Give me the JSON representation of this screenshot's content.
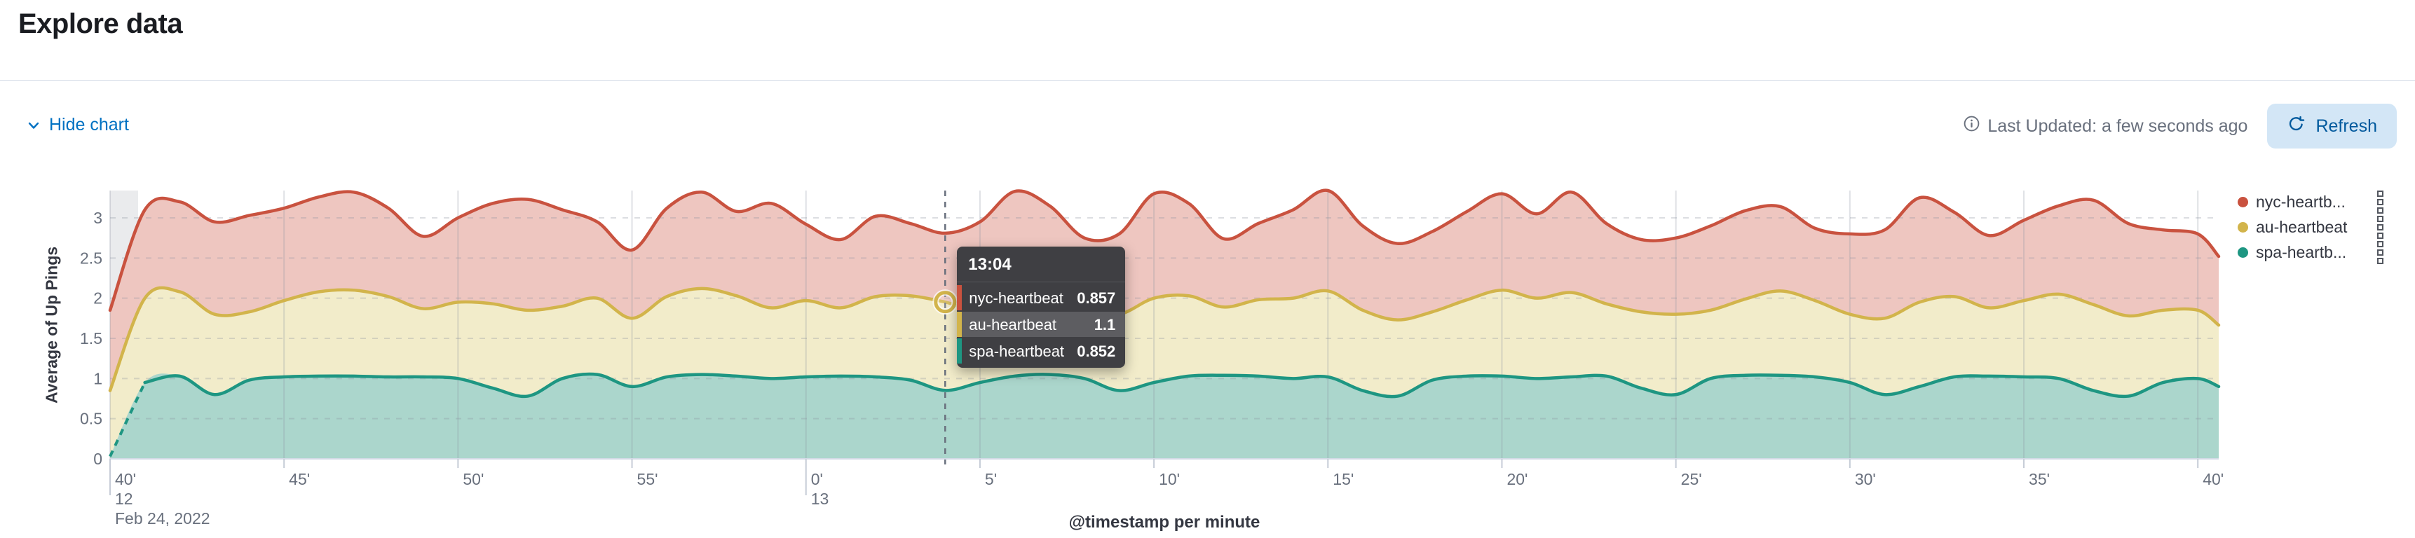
{
  "page": {
    "title": "Explore data"
  },
  "toolbar": {
    "hide_chart_label": "Hide chart",
    "refresh_label": "Refresh"
  },
  "status": {
    "last_updated": "Last Updated: a few seconds ago"
  },
  "chart_data": {
    "type": "area",
    "stacked": true,
    "title": "",
    "xlabel": "@timestamp per minute",
    "ylabel": "Average of Up Pings",
    "start_time": "12:40",
    "interval_minutes": 1,
    "grid": {
      "horizontal": "dashed",
      "vertical": "solid"
    },
    "legend_position": "right",
    "y_axis": {
      "ticks": [
        0,
        0.5,
        1,
        1.5,
        2,
        2.5,
        3
      ],
      "max": 3.34
    },
    "x_axis": {
      "ticks": [
        {
          "label": "40'",
          "minute": 0,
          "sub": "12",
          "sub2": "Feb 24, 2022"
        },
        {
          "label": "45'",
          "minute": 5
        },
        {
          "label": "50'",
          "minute": 10
        },
        {
          "label": "55'",
          "minute": 15
        },
        {
          "label": "0'",
          "minute": 20,
          "sub": "13"
        },
        {
          "label": "5'",
          "minute": 25
        },
        {
          "label": "10'",
          "minute": 30
        },
        {
          "label": "15'",
          "minute": 35
        },
        {
          "label": "20'",
          "minute": 40
        },
        {
          "label": "25'",
          "minute": 45
        },
        {
          "label": "30'",
          "minute": 50
        },
        {
          "label": "35'",
          "minute": 55
        },
        {
          "label": "40'",
          "minute": 60
        }
      ]
    },
    "series": [
      {
        "name": "spa-heartbeat",
        "color": "#1E9682",
        "fill": "#ABD6CC",
        "dashed_start": true,
        "values": [
          0.03,
          0.95,
          1.03,
          0.8,
          0.98,
          1.02,
          1.03,
          1.03,
          1.02,
          1.02,
          1.0,
          0.88,
          0.78,
          1.0,
          1.05,
          0.9,
          1.02,
          1.05,
          1.03,
          1.0,
          1.02,
          1.03,
          1.02,
          0.98,
          0.852,
          0.95,
          1.03,
          1.05,
          1.0,
          0.85,
          0.95,
          1.03,
          1.04,
          1.03,
          1.0,
          1.02,
          0.85,
          0.78,
          0.98,
          1.03,
          1.03,
          1.0,
          1.02,
          1.03,
          0.88,
          0.8,
          1.0,
          1.04,
          1.04,
          1.02,
          0.95,
          0.8,
          0.9,
          1.02,
          1.03,
          1.02,
          1.0,
          0.85,
          0.78,
          0.95,
          1.0
        ]
      },
      {
        "name": "au-heartbeat",
        "color": "#D2B44B",
        "fill": "#F2ECCA",
        "dashed_start": false,
        "values": [
          0.82,
          1.05,
          1.05,
          1.0,
          0.85,
          0.95,
          1.05,
          1.07,
          1.0,
          0.85,
          0.95,
          1.05,
          1.07,
          0.9,
          0.95,
          0.85,
          1.0,
          1.07,
          1.0,
          0.88,
          0.95,
          0.85,
          1.0,
          1.05,
          1.1,
          0.9,
          1.05,
          1.0,
          0.85,
          0.95,
          1.05,
          1.0,
          0.85,
          0.95,
          1.0,
          1.07,
          1.0,
          0.95,
          0.85,
          0.95,
          1.07,
          1.0,
          1.05,
          0.9,
          0.95,
          1.0,
          0.85,
          0.95,
          1.05,
          0.95,
          0.85,
          0.95,
          1.05,
          1.0,
          0.85,
          0.95,
          1.05,
          1.07,
          1.0,
          0.9,
          0.85
        ]
      },
      {
        "name": "nyc-heartbeat",
        "color": "#C9523F",
        "fill": "#EEC6C0",
        "dashed_start": false,
        "values": [
          1.0,
          1.1,
          1.12,
          1.15,
          1.2,
          1.15,
          1.18,
          1.22,
          1.1,
          0.9,
          1.05,
          1.25,
          1.38,
          1.2,
          0.95,
          0.85,
          1.1,
          1.2,
          1.05,
          1.3,
          0.95,
          0.85,
          1.0,
          0.9,
          0.857,
          1.1,
          1.25,
          1.1,
          0.9,
          1.0,
          1.3,
          1.15,
          0.85,
          0.95,
          1.1,
          1.25,
          1.05,
          0.95,
          1.0,
          1.1,
          1.2,
          1.05,
          1.25,
          1.0,
          0.9,
          0.95,
          1.05,
          1.1,
          1.05,
          0.9,
          1.0,
          1.1,
          1.3,
          1.05,
          0.9,
          1.0,
          1.1,
          1.3,
          1.15,
          1.0,
          0.95
        ]
      }
    ],
    "legend": [
      {
        "label": "nyc-heartb...",
        "color": "#C9523F"
      },
      {
        "label": "au-heartbeat",
        "color": "#D2B44B"
      },
      {
        "label": "spa-heartb...",
        "color": "#1E9682"
      }
    ],
    "tooltip": {
      "time": "13:04",
      "minute": 24,
      "rows": [
        {
          "name": "nyc-heartbeat",
          "value": "0.857",
          "color": "#C9523F",
          "highlighted": false
        },
        {
          "name": "au-heartbeat",
          "value": "1.1",
          "color": "#D2B44B",
          "highlighted": true
        },
        {
          "name": "spa-heartbeat",
          "value": "0.852",
          "color": "#1E9682",
          "highlighted": false
        }
      ]
    },
    "partial_bucket_band": true
  }
}
